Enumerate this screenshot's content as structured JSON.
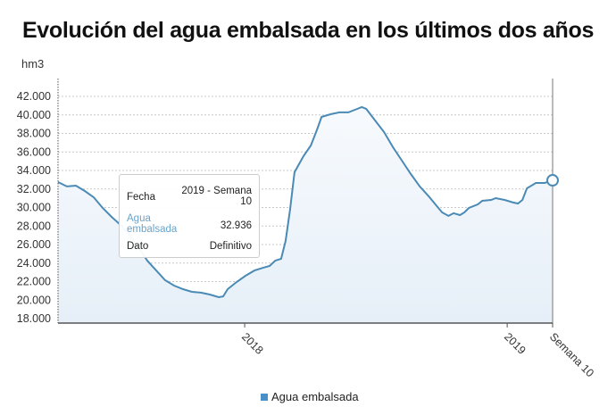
{
  "chart_data": {
    "type": "area",
    "title": "Evolución del agua embalsada en los últimos dos años",
    "ylabel": "hm3",
    "xlabel": "",
    "ylim": [
      18000,
      42000
    ],
    "xlim": [
      2017.289,
      2019.173
    ],
    "yticks": [
      "18.000",
      "20.000",
      "22.000",
      "24.000",
      "26.000",
      "28.000",
      "30.000",
      "32.000",
      "34.000",
      "36.000",
      "38.000",
      "40.000",
      "42.000"
    ],
    "ytick_values": [
      18000,
      20000,
      22000,
      24000,
      26000,
      28000,
      30000,
      32000,
      34000,
      36000,
      38000,
      40000,
      42000
    ],
    "xticks": [
      {
        "label": "2018",
        "value": 2018.0
      },
      {
        "label": "2019",
        "value": 2019.0
      },
      {
        "label": "Semana 10",
        "value": 2019.173
      }
    ],
    "grid": true,
    "legend_position": "bottom",
    "line_color": "#4a8ab5",
    "series": [
      {
        "name": "Agua embalsada",
        "x": [
          2017.289,
          2017.323,
          2017.357,
          2017.391,
          2017.425,
          2017.459,
          2017.493,
          2017.527,
          2017.561,
          2017.595,
          2017.629,
          2017.663,
          2017.697,
          2017.731,
          2017.765,
          2017.799,
          2017.833,
          2017.867,
          2017.901,
          2017.918,
          2017.935,
          2017.969,
          2018.003,
          2018.037,
          2018.071,
          2018.095,
          2018.116,
          2018.139,
          2018.156,
          2018.173,
          2018.19,
          2018.224,
          2018.252,
          2018.276,
          2018.293,
          2018.327,
          2018.361,
          2018.395,
          2018.429,
          2018.446,
          2018.463,
          2018.497,
          2018.531,
          2018.565,
          2018.599,
          2018.633,
          2018.667,
          2018.701,
          2018.735,
          2018.752,
          2018.776,
          2018.796,
          2018.82,
          2018.837,
          2018.854,
          2018.888,
          2018.905,
          2018.939,
          2018.956,
          2018.99,
          2019.024,
          2019.041,
          2019.058,
          2019.075,
          2019.109,
          2019.143,
          2019.173
        ],
        "values": [
          32750,
          32270,
          32360,
          31780,
          31100,
          29950,
          28990,
          28120,
          27060,
          25710,
          24260,
          23200,
          22140,
          21570,
          21180,
          20890,
          20800,
          20600,
          20310,
          20400,
          21180,
          21950,
          22630,
          23200,
          23500,
          23690,
          24260,
          24460,
          26390,
          29760,
          33810,
          35540,
          36700,
          38430,
          39780,
          40070,
          40270,
          40270,
          40650,
          40840,
          40650,
          39400,
          38140,
          36510,
          35060,
          33610,
          32270,
          31210,
          30050,
          29470,
          29090,
          29380,
          29180,
          29470,
          29950,
          30340,
          30720,
          30820,
          31010,
          30820,
          30530,
          30430,
          30820,
          32070,
          32650,
          32650,
          32936
        ]
      }
    ]
  },
  "tooltip": {
    "fecha_label": "Fecha",
    "fecha_value_1": "2019 - Semana",
    "fecha_value_2": "10",
    "agua_label_1": "Agua",
    "agua_label_2": "embalsada",
    "agua_value": "32.936",
    "dato_label": "Dato",
    "dato_value": "Definitivo",
    "accent": "#6aa3c8"
  },
  "legend": {
    "label": "Agua embalsada",
    "color": "#4a90c8"
  }
}
